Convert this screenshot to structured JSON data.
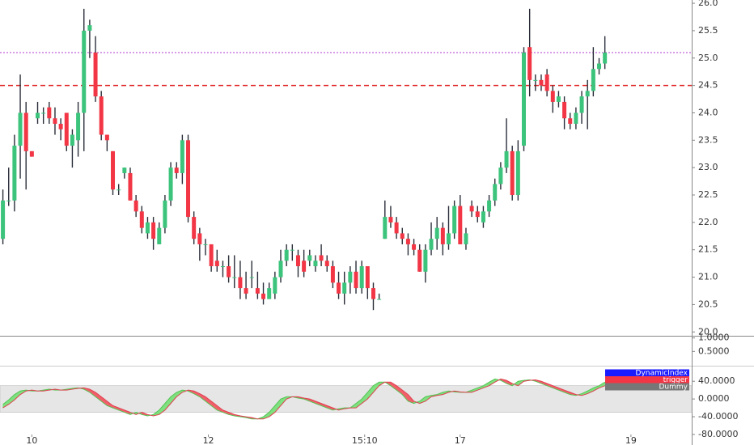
{
  "chart_data": [
    {
      "type": "candlestick",
      "open": [
        21.7,
        22.4,
        22.4,
        23.4,
        24.0,
        23.3,
        23.9,
        24.0,
        24.1,
        23.9,
        23.8,
        24.0,
        23.4,
        23.5,
        24.0,
        25.5,
        25.1,
        24.3,
        23.6,
        23.3,
        22.6,
        22.9,
        22.9,
        22.4,
        22.2,
        21.8,
        22.0,
        21.6,
        21.9,
        22.4,
        23.0,
        22.9,
        23.5,
        22.1,
        21.8,
        21.6,
        21.6,
        21.3,
        21.2,
        21.2,
        21.0,
        21.0,
        20.8,
        21.0,
        20.8,
        20.7,
        20.6,
        20.7,
        21.0,
        21.3,
        21.5,
        21.4,
        21.3,
        21.3,
        21.2,
        21.4,
        21.3,
        21.2,
        20.9,
        20.7,
        20.9,
        21.1,
        20.8,
        21.2,
        20.8,
        20.6,
        21.7,
        22.1,
        22.0,
        21.8,
        21.7,
        21.6,
        21.5,
        21.1,
        21.5,
        21.7,
        21.9,
        21.6,
        21.8,
        22.3,
        21.6,
        22.3,
        22.2,
        22.0,
        22.2,
        22.4,
        22.7,
        23.0,
        23.3,
        22.5,
        23.4,
        25.2,
        24.6,
        24.6,
        24.7,
        24.4,
        24.2,
        24.2,
        23.9,
        23.8,
        24.0,
        24.3,
        24.4,
        24.8,
        24.9
      ],
      "high": [
        22.6,
        23.0,
        23.6,
        24.7,
        24.2,
        23.3,
        24.2,
        24.1,
        24.2,
        24.1,
        23.9,
        24.0,
        23.7,
        24.2,
        25.9,
        25.7,
        25.4,
        24.4,
        23.6,
        23.3,
        22.7,
        23.0,
        23.0,
        22.5,
        22.3,
        22.1,
        22.1,
        22.0,
        22.5,
        23.1,
        23.1,
        23.6,
        23.6,
        22.2,
        21.9,
        21.7,
        21.6,
        21.5,
        21.3,
        21.4,
        21.4,
        21.3,
        21.1,
        21.3,
        21.1,
        20.9,
        20.9,
        21.1,
        21.5,
        21.6,
        21.6,
        21.5,
        21.5,
        21.5,
        21.4,
        21.6,
        21.4,
        21.3,
        21.1,
        21.1,
        21.2,
        21.3,
        21.3,
        21.2,
        20.9,
        20.7,
        22.4,
        22.3,
        22.1,
        21.9,
        21.8,
        21.7,
        21.6,
        21.6,
        22.0,
        22.1,
        22.0,
        22.3,
        22.4,
        22.5,
        21.9,
        22.4,
        22.3,
        22.3,
        22.5,
        22.8,
        23.1,
        23.9,
        23.4,
        23.5,
        25.2,
        25.9,
        24.7,
        24.7,
        24.8,
        24.5,
        24.4,
        24.3,
        24.0,
        24.1,
        24.4,
        24.6,
        25.2,
        25.0,
        25.4
      ],
      "low": [
        21.6,
        22.3,
        22.2,
        22.8,
        22.6,
        23.2,
        23.8,
        23.8,
        23.8,
        23.6,
        23.5,
        23.3,
        23.0,
        23.2,
        23.3,
        25.0,
        24.2,
        23.5,
        23.3,
        22.5,
        22.5,
        22.8,
        22.4,
        22.1,
        21.8,
        21.7,
        21.5,
        21.6,
        21.8,
        22.3,
        22.8,
        22.7,
        22.0,
        21.6,
        21.3,
        21.4,
        21.1,
        21.1,
        21.0,
        20.9,
        20.8,
        20.6,
        20.6,
        20.8,
        20.6,
        20.5,
        20.6,
        20.6,
        20.9,
        21.2,
        21.3,
        21.0,
        21.0,
        21.2,
        21.1,
        21.2,
        21.1,
        20.8,
        20.6,
        20.5,
        20.7,
        20.7,
        20.7,
        20.6,
        20.4,
        20.6,
        21.7,
        21.9,
        21.7,
        21.6,
        21.4,
        21.4,
        21.1,
        20.9,
        21.4,
        21.5,
        21.4,
        21.5,
        21.7,
        21.6,
        21.5,
        22.1,
        22.0,
        21.9,
        22.1,
        22.3,
        22.6,
        22.9,
        22.4,
        22.4,
        23.3,
        24.3,
        24.4,
        24.4,
        24.3,
        24.0,
        24.1,
        23.7,
        23.7,
        23.7,
        23.8,
        23.7,
        24.3,
        24.7,
        24.8
      ],
      "close": [
        22.4,
        22.4,
        23.4,
        24.0,
        23.3,
        23.2,
        24.0,
        24.0,
        23.9,
        23.8,
        23.7,
        23.4,
        23.6,
        24.0,
        25.5,
        25.6,
        24.3,
        23.6,
        23.5,
        22.6,
        22.6,
        23.0,
        22.4,
        22.2,
        21.9,
        22.0,
        21.7,
        21.9,
        22.4,
        23.0,
        22.9,
        23.5,
        22.1,
        21.7,
        21.6,
        21.6,
        21.2,
        21.2,
        21.2,
        21.0,
        21.0,
        20.8,
        20.7,
        21.0,
        20.7,
        20.6,
        20.8,
        21.0,
        21.3,
        21.5,
        21.5,
        21.2,
        21.1,
        21.4,
        21.3,
        21.3,
        21.2,
        20.9,
        20.7,
        20.9,
        21.1,
        20.8,
        21.2,
        20.8,
        20.6,
        20.6,
        22.1,
        22.0,
        21.8,
        21.7,
        21.6,
        21.5,
        21.1,
        21.5,
        21.7,
        21.9,
        21.6,
        21.8,
        22.3,
        21.6,
        21.8,
        22.2,
        22.1,
        22.2,
        22.4,
        22.7,
        23.0,
        23.3,
        22.5,
        23.3,
        25.1,
        24.6,
        24.6,
        24.5,
        24.4,
        24.2,
        24.3,
        23.9,
        23.8,
        24.0,
        24.3,
        24.4,
        24.8,
        24.9,
        25.1
      ],
      "up_color": "#3cc47c",
      "down_color": "#f23645",
      "wick_color": "#2a2e39",
      "xlim": [
        -0.5,
        119
      ],
      "xticks": [
        {
          "value": 5,
          "label": "10"
        },
        {
          "value": 35.5,
          "label": "12"
        },
        {
          "value": 62.5,
          "label": "15:10"
        },
        {
          "value": 79,
          "label": "17"
        },
        {
          "value": 108.5,
          "label": "19"
        }
      ],
      "ylim": [
        19.93,
        26.06
      ],
      "yticks": [
        {
          "value": 20,
          "label": "20.0"
        },
        20.5,
        {
          "value": 21,
          "label": "21.0"
        },
        21.5,
        {
          "value": 22,
          "label": "22.0"
        },
        22.5,
        {
          "value": 23,
          "label": "23.0"
        },
        23.5,
        {
          "value": 24,
          "label": "24.0"
        },
        24.5,
        {
          "value": 25,
          "label": "25.0"
        },
        25.5,
        {
          "value": 26,
          "label": "26.0"
        }
      ],
      "hlines": [
        {
          "value": 25.1,
          "color": "#b03ad0",
          "style": "dotted"
        },
        {
          "value": 24.5,
          "color": "#e02020",
          "style": "dashed"
        }
      ]
    },
    {
      "type": "pane",
      "ylim": [
        -0.03,
        1.08
      ],
      "yticks": [
        {
          "value": 1,
          "label": "1.0000"
        },
        {
          "value": 0.5,
          "label": "0.5000"
        }
      ]
    },
    {
      "type": "line",
      "xlim": [
        -0.5,
        119
      ],
      "ylim": [
        -80,
        75
      ],
      "yticks": [
        {
          "value": 40,
          "label": "40.0000"
        },
        {
          "value": 0,
          "label": "0.0000"
        },
        {
          "value": -40,
          "label": "-40.0000"
        },
        {
          "value": -80,
          "label": "-80.0000"
        }
      ],
      "band": [
        -30,
        30
      ],
      "up_fill": "#7ee07e",
      "down_fill": "#f0606a",
      "series": [
        {
          "name": "DynamicIndex",
          "color": "#1a1aff",
          "line_color": "#55c455",
          "values": [
            -12,
            -2,
            10,
            18,
            20,
            18,
            18,
            20,
            22,
            20,
            20,
            22,
            24,
            25,
            22,
            15,
            5,
            -5,
            -15,
            -20,
            -25,
            -30,
            -35,
            -30,
            -35,
            -38,
            -35,
            -25,
            -10,
            5,
            15,
            20,
            18,
            12,
            5,
            -5,
            -15,
            -25,
            -30,
            -35,
            -38,
            -40,
            -42,
            -45,
            -45,
            -40,
            -30,
            -15,
            0,
            5,
            5,
            2,
            0,
            -5,
            -10,
            -15,
            -20,
            -25,
            -22,
            -20,
            -20,
            -10,
            0,
            15,
            30,
            38,
            38,
            30,
            20,
            10,
            -5,
            -10,
            -5,
            5,
            8,
            10,
            15,
            18,
            16,
            15,
            15,
            20,
            25,
            30,
            38,
            45,
            42,
            35,
            30,
            40,
            42,
            43,
            40,
            35,
            30,
            25,
            20,
            15,
            10,
            8,
            12,
            18,
            25,
            30,
            38
          ]
        },
        {
          "name": "trigger",
          "color": "#f23645",
          "line_color": "#e04050",
          "values": [
            -20,
            -12,
            -2,
            10,
            18,
            20,
            18,
            18,
            20,
            22,
            20,
            20,
            22,
            24,
            25,
            22,
            15,
            5,
            -5,
            -15,
            -20,
            -25,
            -30,
            -35,
            -30,
            -35,
            -38,
            -35,
            -25,
            -10,
            5,
            15,
            20,
            18,
            12,
            5,
            -5,
            -15,
            -25,
            -30,
            -35,
            -38,
            -40,
            -42,
            -45,
            -45,
            -40,
            -30,
            -15,
            0,
            5,
            5,
            2,
            0,
            -5,
            -10,
            -15,
            -20,
            -25,
            -22,
            -20,
            -20,
            -10,
            0,
            15,
            30,
            38,
            38,
            30,
            20,
            10,
            -5,
            -10,
            -5,
            5,
            8,
            10,
            15,
            18,
            16,
            15,
            15,
            20,
            25,
            30,
            38,
            45,
            42,
            35,
            30,
            40,
            42,
            43,
            40,
            35,
            30,
            25,
            20,
            15,
            10,
            8,
            12,
            18,
            25,
            30
          ]
        },
        {
          "name": "Dummy",
          "color": "#777777"
        }
      ]
    }
  ]
}
